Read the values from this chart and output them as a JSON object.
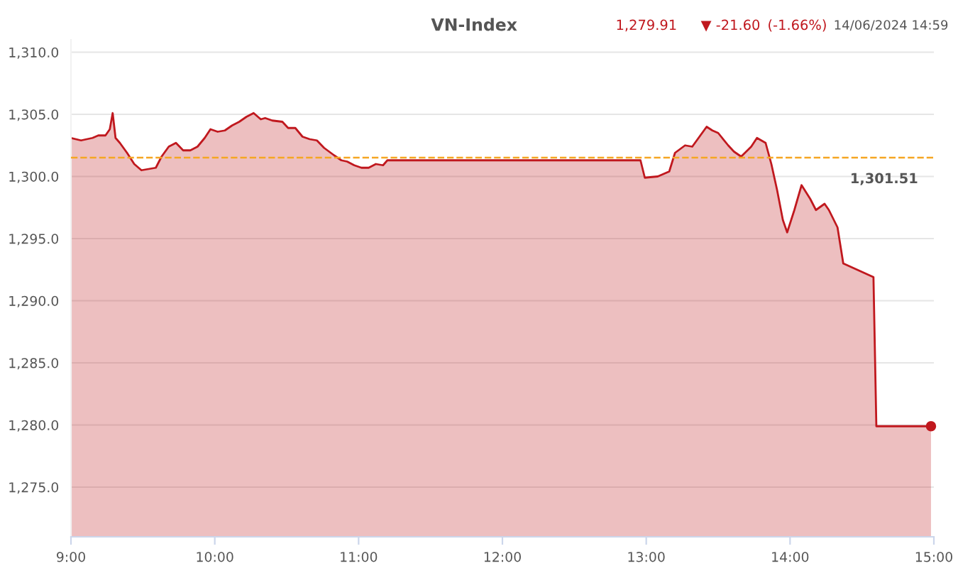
{
  "chart_data": {
    "type": "area",
    "title": "VN-Index",
    "annotations": [
      "1,279.91",
      "▼ -21.60",
      "(-1.66%)",
      "14/06/2024 14:59"
    ],
    "xlim": [
      9,
      15
    ],
    "ylim": [
      1271,
      1311
    ],
    "xticks": [
      {
        "value": 9,
        "label": "9:00"
      },
      {
        "value": 10,
        "label": "10:00"
      },
      {
        "value": 11,
        "label": "11:00"
      },
      {
        "value": 12,
        "label": "12:00"
      },
      {
        "value": 13,
        "label": "13:00"
      },
      {
        "value": 14,
        "label": "14:00"
      },
      {
        "value": 15,
        "label": "15:00"
      }
    ],
    "yticks": [
      {
        "value": 1275,
        "label": "1,275.0"
      },
      {
        "value": 1280,
        "label": "1,280.0"
      },
      {
        "value": 1285,
        "label": "1,285.0"
      },
      {
        "value": 1290,
        "label": "1,290.0"
      },
      {
        "value": 1295,
        "label": "1,295.0"
      },
      {
        "value": 1300,
        "label": "1,300.0"
      },
      {
        "value": 1305,
        "label": "1,305.0"
      },
      {
        "value": 1310,
        "label": "1,310.0"
      }
    ],
    "grid": "y",
    "legend": false,
    "ref_lines": [
      {
        "axis": "y",
        "value": 1301.51,
        "label": "1,301.51",
        "color": "#f5a623",
        "line_style": "dashed"
      }
    ],
    "series": [
      {
        "color": "#c0181e",
        "x": [
          9.0,
          9.07,
          9.15,
          9.19,
          9.24,
          9.27,
          9.29,
          9.31,
          9.34,
          9.39,
          9.44,
          9.49,
          9.54,
          9.59,
          9.63,
          9.68,
          9.73,
          9.78,
          9.83,
          9.88,
          9.93,
          9.97,
          10.02,
          10.07,
          10.12,
          10.17,
          10.22,
          10.27,
          10.32,
          10.35,
          10.4,
          10.47,
          10.51,
          10.56,
          10.61,
          10.66,
          10.71,
          10.76,
          10.83,
          10.88,
          10.92,
          10.97,
          11.02,
          11.07,
          11.12,
          11.17,
          11.2,
          11.27,
          11.33,
          12.96,
          12.99,
          13.08,
          13.16,
          13.2,
          13.27,
          13.32,
          13.37,
          13.42,
          13.46,
          13.5,
          13.57,
          13.61,
          13.66,
          13.73,
          13.77,
          13.83,
          13.87,
          13.91,
          13.95,
          13.98,
          14.03,
          14.08,
          14.14,
          14.18,
          14.24,
          14.27,
          14.33,
          14.37,
          14.58,
          14.6,
          14.98
        ],
        "values": [
          1303.1,
          1302.9,
          1303.1,
          1303.3,
          1303.3,
          1303.8,
          1305.1,
          1303.1,
          1302.7,
          1301.9,
          1301.0,
          1300.5,
          1300.6,
          1300.7,
          1301.6,
          1302.4,
          1302.7,
          1302.1,
          1302.1,
          1302.4,
          1303.1,
          1303.8,
          1303.6,
          1303.7,
          1304.1,
          1304.4,
          1304.8,
          1305.1,
          1304.6,
          1304.7,
          1304.5,
          1304.4,
          1303.9,
          1303.9,
          1303.2,
          1303.0,
          1302.9,
          1302.3,
          1301.7,
          1301.3,
          1301.2,
          1300.9,
          1300.7,
          1300.7,
          1301.0,
          1300.9,
          1301.3,
          1301.3,
          1301.3,
          1301.3,
          1299.9,
          1300.0,
          1300.4,
          1301.9,
          1302.5,
          1302.4,
          1303.2,
          1304.0,
          1303.7,
          1303.5,
          1302.5,
          1302.0,
          1301.6,
          1302.4,
          1303.1,
          1302.7,
          1301.0,
          1298.9,
          1296.5,
          1295.5,
          1297.3,
          1299.3,
          1298.2,
          1297.3,
          1297.8,
          1297.3,
          1295.9,
          1293.0,
          1291.9,
          1279.9,
          1279.9
        ]
      },
      {
        "type": "scatter",
        "color": "#c0181e",
        "x": [
          14.98
        ],
        "values": [
          1279.9
        ]
      }
    ]
  }
}
